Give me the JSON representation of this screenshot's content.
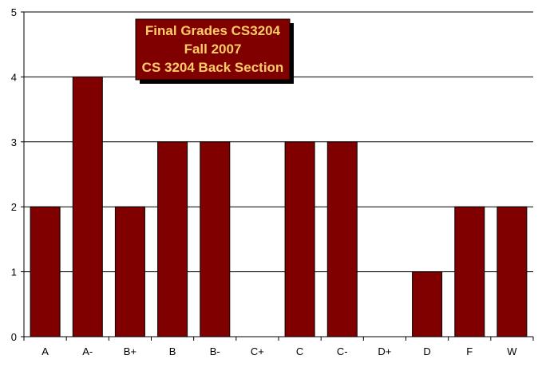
{
  "chart_data": {
    "type": "bar",
    "title": [
      "Final Grades CS3204",
      "Fall 2007",
      "CS 3204 Back Section"
    ],
    "categories": [
      "A",
      "A-",
      "B+",
      "B",
      "B-",
      "C+",
      "C",
      "C-",
      "D+",
      "D",
      "F",
      "W"
    ],
    "values": [
      2,
      4,
      2,
      3,
      3,
      0,
      3,
      3,
      0,
      1,
      2,
      2
    ],
    "ylim": [
      0,
      5
    ],
    "yticks": [
      "0",
      "1",
      "2",
      "3",
      "4",
      "5"
    ],
    "grid": true,
    "legend": "none",
    "colors": {
      "bar": "#800000",
      "bar_stroke": "#000000",
      "title_box": "#800000",
      "title_text": "#ffcc66",
      "title_shadow": "#000000",
      "gridline": "#000000"
    }
  }
}
